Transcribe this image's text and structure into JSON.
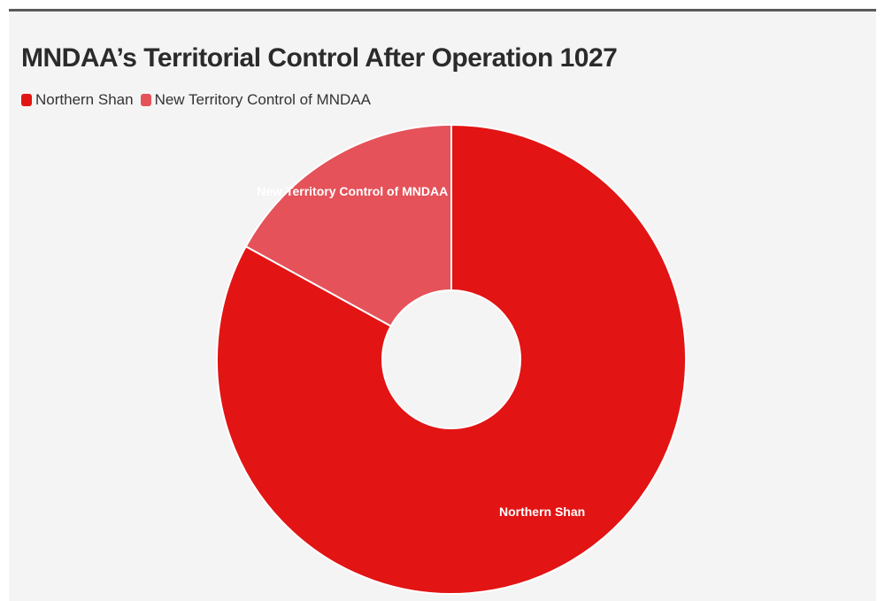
{
  "chart_data": {
    "type": "pie",
    "title": "MNDAA’s Territorial Control After Operation 1027",
    "donut": true,
    "legend_position": "top-left",
    "categories": [
      "Northern Shan",
      "New Territory Control of MNDAA"
    ],
    "values": [
      83,
      17
    ],
    "colors": [
      "#e31414",
      "#e5525a"
    ],
    "slice_labels": [
      "Northern Shan",
      "New Territory Control of MNDAA"
    ]
  }
}
